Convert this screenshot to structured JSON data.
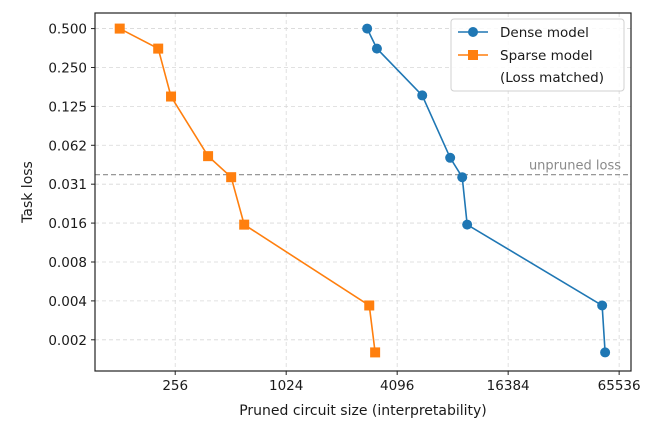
{
  "chart_data": {
    "type": "line",
    "title": "",
    "xlabel": "Pruned circuit size (interpretability)",
    "ylabel": "Task loss",
    "x_scale": "log2",
    "y_scale": "log2",
    "xlim": [
      94,
      76000
    ],
    "ylim": [
      0.00112,
      0.66
    ],
    "grid": true,
    "legend_position": "top-right",
    "x_ticks": [
      {
        "value": 256,
        "label": "256"
      },
      {
        "value": 1024,
        "label": "1024"
      },
      {
        "value": 4096,
        "label": "4096"
      },
      {
        "value": 16384,
        "label": "16384"
      },
      {
        "value": 65536,
        "label": "65536"
      }
    ],
    "y_ticks": [
      {
        "value": 0.5,
        "label": "0.500"
      },
      {
        "value": 0.25,
        "label": "0.250"
      },
      {
        "value": 0.125,
        "label": "0.125"
      },
      {
        "value": 0.0625,
        "label": "0.062"
      },
      {
        "value": 0.03125,
        "label": "0.031"
      },
      {
        "value": 0.015625,
        "label": "0.016"
      },
      {
        "value": 0.0078125,
        "label": "0.008"
      },
      {
        "value": 0.00390625,
        "label": "0.004"
      },
      {
        "value": 0.001953125,
        "label": "0.002"
      }
    ],
    "reference_line": {
      "y": 0.037,
      "label": "unpruned loss",
      "color": "#8a8a8a"
    },
    "series": [
      {
        "name": "Dense model",
        "marker": "circle",
        "color": "#1f77b4",
        "points": [
          {
            "x": 2815,
            "y": 0.5
          },
          {
            "x": 3180,
            "y": 0.35
          },
          {
            "x": 5600,
            "y": 0.152
          },
          {
            "x": 7940,
            "y": 0.05
          },
          {
            "x": 9230,
            "y": 0.0354
          },
          {
            "x": 9820,
            "y": 0.0152
          },
          {
            "x": 53000,
            "y": 0.0036
          },
          {
            "x": 55000,
            "y": 0.00156
          }
        ]
      },
      {
        "name": "Sparse model",
        "name_line2": "(Loss matched)",
        "marker": "square",
        "color": "#ff7f0e",
        "points": [
          {
            "x": 128,
            "y": 0.5
          },
          {
            "x": 207,
            "y": 0.35
          },
          {
            "x": 243,
            "y": 0.149
          },
          {
            "x": 386,
            "y": 0.0515
          },
          {
            "x": 515,
            "y": 0.0354
          },
          {
            "x": 606,
            "y": 0.0152
          },
          {
            "x": 2890,
            "y": 0.0036
          },
          {
            "x": 3110,
            "y": 0.00156
          }
        ]
      }
    ]
  }
}
